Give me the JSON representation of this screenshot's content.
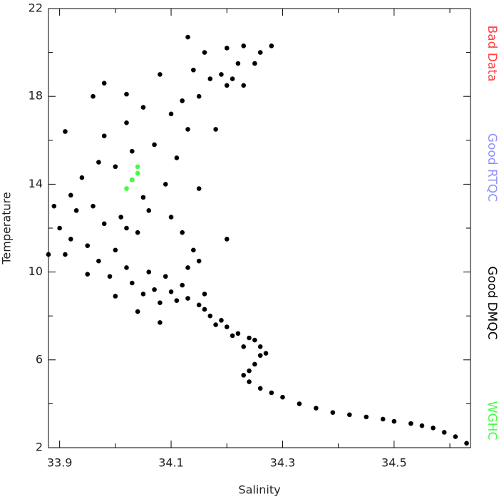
{
  "chart_data": {
    "type": "scatter",
    "x_label": "Salinity",
    "y_label": "Temperature",
    "xlim": [
      33.88,
      34.637
    ],
    "ylim": [
      2,
      22
    ],
    "xticks": [
      33.9,
      34.1,
      34.3,
      34.5
    ],
    "yticks": [
      2,
      6,
      10,
      14,
      18,
      22
    ],
    "xminor": [
      34.0,
      34.2,
      34.4,
      34.6
    ],
    "yminor": [
      4,
      8,
      12,
      16,
      20
    ],
    "series": [
      {
        "name": "Bad Data",
        "color": "#ff4040",
        "x": [],
        "y": []
      },
      {
        "name": "Good RTQC",
        "color": "#9090ff",
        "x": [],
        "y": []
      },
      {
        "name": "Good DMQC",
        "color": "#000000",
        "x": [
          34.23,
          34.24,
          34.26,
          34.28,
          34.3,
          34.33,
          34.36,
          34.39,
          34.42,
          34.45,
          34.48,
          34.5,
          34.53,
          34.55,
          34.57,
          34.59,
          34.61,
          34.63,
          34.25,
          34.24,
          34.27,
          34.26,
          34.25,
          34.24,
          34.22,
          34.2,
          34.19,
          34.17,
          34.16,
          34.18,
          34.21,
          34.23,
          34.26,
          34.15,
          34.13,
          33.9,
          33.92,
          33.91,
          33.93,
          33.95,
          33.96,
          33.97,
          33.98,
          33.99,
          34.0,
          34.01,
          34.02,
          34.03,
          34.04,
          34.05,
          34.06,
          34.07,
          34.08,
          34.09,
          34.1,
          34.11,
          34.12,
          34.13,
          34.14,
          34.15,
          34.16,
          34.12,
          34.1,
          34.05,
          34.03,
          34.0,
          33.97,
          33.94,
          33.92,
          33.89,
          33.88,
          33.95,
          34.0,
          34.04,
          34.08,
          34.02,
          34.06,
          34.09,
          34.11,
          34.07,
          33.98,
          33.91,
          33.96,
          33.98,
          34.02,
          34.05,
          34.1,
          34.13,
          34.15,
          34.17,
          34.2,
          34.23,
          34.19,
          34.22,
          34.14,
          34.16,
          34.2,
          34.23,
          34.26,
          34.28,
          34.25,
          34.13,
          34.12,
          34.08,
          34.02,
          34.18,
          34.21,
          34.03,
          34.15,
          34.2
        ],
        "y": [
          5.3,
          5.0,
          4.7,
          4.5,
          4.3,
          4.0,
          3.8,
          3.6,
          3.5,
          3.4,
          3.3,
          3.2,
          3.1,
          3.0,
          2.9,
          2.7,
          2.5,
          2.2,
          5.8,
          5.5,
          6.3,
          6.6,
          6.9,
          7.0,
          7.2,
          7.5,
          7.8,
          8.0,
          8.3,
          7.6,
          7.1,
          6.6,
          6.2,
          8.5,
          8.8,
          12.0,
          11.5,
          10.8,
          12.8,
          11.2,
          13.0,
          10.5,
          12.2,
          9.8,
          11.0,
          12.5,
          10.2,
          9.5,
          11.8,
          9.0,
          10.0,
          9.2,
          8.6,
          9.8,
          9.1,
          8.7,
          9.4,
          10.2,
          11.0,
          10.5,
          9.0,
          11.8,
          12.5,
          13.4,
          14.2,
          14.8,
          15.0,
          14.3,
          13.5,
          13.0,
          10.8,
          9.9,
          8.9,
          8.2,
          7.7,
          12.0,
          12.8,
          14.0,
          15.2,
          15.8,
          16.2,
          16.4,
          18.0,
          18.6,
          16.8,
          17.5,
          17.2,
          16.5,
          18.0,
          18.8,
          18.5,
          18.5,
          19.0,
          19.5,
          19.2,
          20.0,
          20.2,
          20.3,
          20.0,
          20.3,
          19.5,
          20.7,
          17.8,
          19.0,
          18.1,
          16.5,
          18.8,
          15.5,
          13.8,
          11.5
        ]
      },
      {
        "name": "WGHC",
        "color": "#40ff40",
        "x": [
          34.04,
          34.04,
          34.03,
          34.02
        ],
        "y": [
          14.5,
          14.8,
          14.2,
          13.8
        ]
      }
    ]
  }
}
